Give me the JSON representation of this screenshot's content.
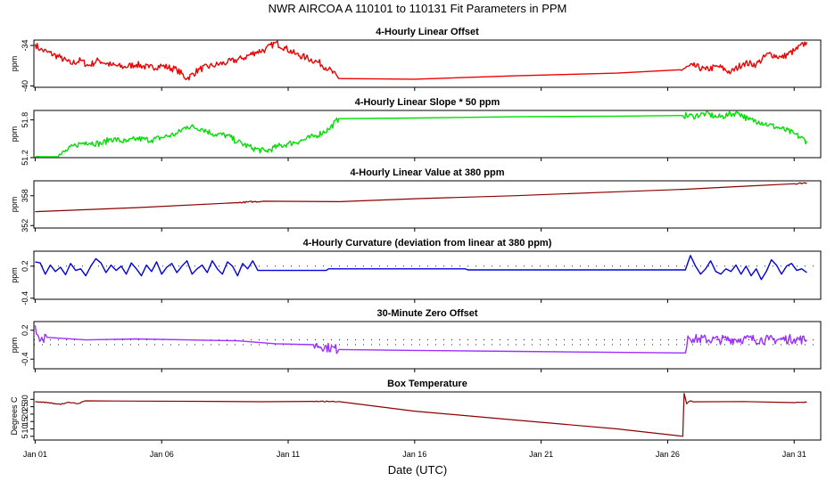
{
  "title": "NWR   AIRCOA A   110101 to 110131   Fit Parameters in PPM",
  "xlabel": "Date (UTC)",
  "x_ticks": [
    {
      "day": 1,
      "label": "Jan 01"
    },
    {
      "day": 6,
      "label": "Jan 06"
    },
    {
      "day": 11,
      "label": "Jan 11"
    },
    {
      "day": 16,
      "label": "Jan 16"
    },
    {
      "day": 21,
      "label": "Jan 21"
    },
    {
      "day": 26,
      "label": "Jan 26"
    },
    {
      "day": 31,
      "label": "Jan 31"
    }
  ],
  "chart_data": [
    {
      "type": "line",
      "title": "4-Hourly Linear Offset",
      "ylabel": "ppm",
      "ylim": [
        -40.2,
        -33.2
      ],
      "yticks": [
        {
          "v": -34,
          "label": "-34"
        },
        {
          "v": -40,
          "label": "-40"
        }
      ],
      "color": "#ee0000",
      "x": [
        1.0,
        1.2,
        1.5,
        2.0,
        2.4,
        2.8,
        3.1,
        3.5,
        4.0,
        4.5,
        5.0,
        5.5,
        6.0,
        6.6,
        7.0,
        7.5,
        8.0,
        8.6,
        9.2,
        9.7,
        10.1,
        10.5,
        10.9,
        11.3,
        11.7,
        12.2,
        12.6,
        13.0,
        16.0,
        20.0,
        24.0,
        26.5,
        27.0,
        27.5,
        28.0,
        28.5,
        29.0,
        29.5,
        30.0,
        30.5,
        31.0,
        31.5
      ],
      "values": [
        -33.8,
        -34.6,
        -35.0,
        -35.8,
        -36.7,
        -36.2,
        -37.0,
        -36.2,
        -36.9,
        -37.2,
        -36.8,
        -37.3,
        -37.0,
        -37.6,
        -38.9,
        -37.5,
        -37.0,
        -36.5,
        -35.9,
        -35.0,
        -34.6,
        -33.6,
        -34.4,
        -35.3,
        -35.8,
        -36.5,
        -37.5,
        -38.9,
        -39.0,
        -38.5,
        -38.1,
        -37.6,
        -37.0,
        -37.6,
        -37.1,
        -38.0,
        -36.6,
        -36.8,
        -35.2,
        -35.8,
        -34.8,
        -33.5
      ],
      "noise": 0.5,
      "refline": null
    },
    {
      "type": "line",
      "title": "4-Hourly Linear Slope * 50 ppm",
      "ylabel": "ppm",
      "ylim": [
        51.2,
        51.95
      ],
      "yticks": [
        {
          "v": 51.8,
          "label": "51.8"
        },
        {
          "v": 51.2,
          "label": "51.2"
        }
      ],
      "color": "#00e000",
      "x": [
        1.0,
        1.5,
        2.0,
        2.6,
        3.0,
        3.6,
        4.0,
        4.6,
        5.0,
        5.6,
        6.0,
        6.6,
        7.0,
        7.6,
        8.0,
        8.6,
        9.0,
        9.6,
        10.1,
        10.6,
        11.0,
        11.6,
        12.1,
        12.6,
        13.0,
        16.0,
        20.0,
        24.0,
        26.6,
        27.0,
        27.5,
        28.0,
        28.4,
        28.8,
        29.2,
        29.6,
        30.0,
        30.5,
        31.0,
        31.5
      ],
      "values": [
        51.18,
        51.15,
        51.25,
        51.4,
        51.45,
        51.42,
        51.5,
        51.45,
        51.5,
        51.48,
        51.52,
        51.58,
        51.7,
        51.66,
        51.58,
        51.55,
        51.45,
        51.35,
        51.3,
        51.38,
        51.42,
        51.48,
        51.55,
        51.65,
        51.82,
        51.83,
        51.85,
        51.86,
        51.87,
        51.86,
        51.9,
        51.84,
        51.88,
        51.92,
        51.8,
        51.78,
        51.72,
        51.66,
        51.58,
        51.46
      ],
      "noise": 0.05,
      "refline": null
    },
    {
      "type": "line",
      "title": "4-Hourly Linear Value at 380 ppm",
      "ylabel": "ppm",
      "ylim": [
        351.5,
        361.0
      ],
      "yticks": [
        {
          "v": 358,
          "label": "358"
        },
        {
          "v": 352,
          "label": "352"
        }
      ],
      "color": "#8b0000",
      "x": [
        1.0,
        5.0,
        9.0,
        10.0,
        13.0,
        16.0,
        20.0,
        24.0,
        26.7,
        29.0,
        31.0,
        31.5
      ],
      "values": [
        354.8,
        355.6,
        356.6,
        356.9,
        356.8,
        357.4,
        358.0,
        358.8,
        359.3,
        359.9,
        360.4,
        360.6
      ],
      "noise": 0.15,
      "refline": null
    },
    {
      "type": "line",
      "title": "4-Hourly Curvature (deviation from linear at 380 ppm)",
      "ylabel": "ppm",
      "ylim": [
        -0.42,
        0.48
      ],
      "yticks": [
        {
          "v": 0.2,
          "label": "0.2"
        },
        {
          "v": -0.4,
          "label": "-0.4"
        }
      ],
      "color": "#0000dd",
      "x": [
        1.0,
        1.2,
        1.4,
        1.6,
        1.8,
        2.0,
        2.2,
        2.4,
        2.6,
        2.8,
        3.0,
        3.2,
        3.4,
        3.6,
        3.8,
        4.0,
        4.2,
        4.4,
        4.6,
        4.8,
        5.0,
        5.2,
        5.4,
        5.6,
        5.8,
        6.0,
        6.2,
        6.4,
        6.6,
        6.8,
        7.0,
        7.2,
        7.4,
        7.6,
        7.8,
        8.0,
        8.2,
        8.4,
        8.6,
        8.8,
        9.0,
        9.2,
        9.4,
        9.6,
        9.8,
        10.0,
        12.5,
        12.6,
        18.0,
        18.1,
        26.7,
        26.9,
        27.1,
        27.3,
        27.5,
        27.7,
        27.9,
        28.1,
        28.3,
        28.5,
        28.7,
        28.9,
        29.1,
        29.3,
        29.5,
        29.7,
        29.9,
        30.1,
        30.3,
        30.5,
        30.7,
        30.9,
        31.1,
        31.3,
        31.5
      ],
      "values": [
        0.28,
        0.26,
        0.05,
        0.22,
        0.1,
        0.18,
        0.04,
        0.25,
        0.12,
        0.15,
        0.02,
        0.2,
        0.34,
        0.26,
        0.08,
        0.22,
        0.12,
        0.2,
        0.05,
        0.26,
        0.15,
        0.02,
        0.22,
        0.1,
        0.28,
        0.05,
        0.18,
        0.25,
        0.08,
        0.2,
        0.3,
        0.05,
        0.15,
        0.22,
        0.08,
        0.3,
        0.15,
        0.05,
        0.28,
        0.2,
        0.02,
        0.25,
        0.15,
        0.3,
        0.12,
        0.12,
        0.12,
        0.15,
        0.15,
        0.13,
        0.13,
        0.4,
        0.2,
        0.05,
        0.15,
        0.3,
        0.1,
        0.05,
        0.15,
        0.1,
        0.22,
        0.05,
        0.2,
        0.02,
        0.15,
        -0.05,
        0.1,
        0.32,
        0.22,
        0.05,
        0.2,
        0.25,
        0.12,
        0.15,
        0.08
      ],
      "noise": 0.0,
      "refline": 0.2
    },
    {
      "type": "line",
      "title": "30-Minute Zero Offset",
      "ylabel": "ppm",
      "ylim": [
        -0.6,
        0.38
      ],
      "yticks": [
        {
          "v": 0.2,
          "label": "0.2"
        },
        {
          "v": -0.4,
          "label": "-0.4"
        }
      ],
      "color": "#9b30ff",
      "x": [
        1.0,
        1.1,
        1.3,
        1.5,
        3.0,
        5.0,
        7.0,
        9.0,
        10.5,
        12.0,
        13.0,
        16.0,
        20.0,
        24.0,
        26.7,
        26.8,
        27.0,
        28.0,
        29.0,
        30.0,
        31.0,
        31.5
      ],
      "values": [
        0.3,
        0.1,
        0.0,
        0.05,
        0.0,
        0.02,
        0.0,
        -0.02,
        -0.08,
        -0.1,
        -0.2,
        -0.22,
        -0.24,
        -0.26,
        -0.27,
        0.08,
        0.02,
        0.0,
        0.02,
        0.0,
        0.02,
        0.0
      ],
      "noise": 0.1,
      "refline": -0.1,
      "refline2": 0.0
    },
    {
      "type": "line",
      "title": "Box Temperature",
      "ylabel": "Degrees C",
      "ylim": [
        2.5,
        35.0
      ],
      "yticks": [
        {
          "v": 30,
          "label": "30"
        },
        {
          "v": 25,
          "label": "25"
        },
        {
          "v": 20,
          "label": "20"
        },
        {
          "v": 15,
          "label": "15"
        },
        {
          "v": 10,
          "label": "10"
        },
        {
          "v": 5,
          "label": "5"
        }
      ],
      "color": "#8b0000",
      "x": [
        1.0,
        1.5,
        2.0,
        2.3,
        2.7,
        3.0,
        5.0,
        8.0,
        10.0,
        12.0,
        13.0,
        16.0,
        20.0,
        24.0,
        26.6,
        26.65,
        26.75,
        26.9,
        27.0,
        29.0,
        31.0,
        31.5
      ],
      "values": [
        28.5,
        27.8,
        26.5,
        28.0,
        27.2,
        29.0,
        28.8,
        28.6,
        28.4,
        28.6,
        28.5,
        22.0,
        16.0,
        10.0,
        5.0,
        34.0,
        27.0,
        29.0,
        28.3,
        28.5,
        27.8,
        28.0
      ],
      "noise": 0.3,
      "refline": null
    }
  ]
}
